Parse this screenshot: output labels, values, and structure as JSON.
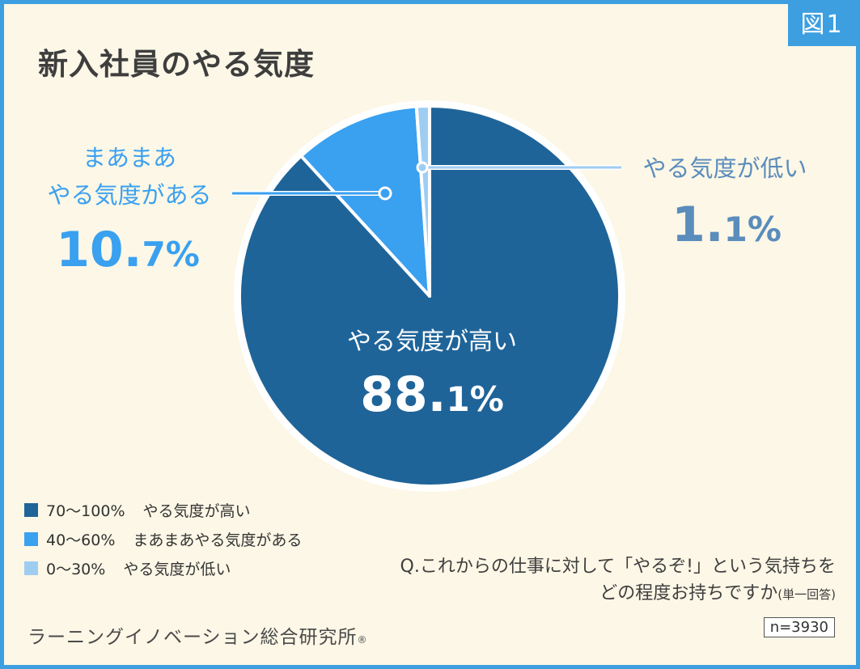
{
  "figure_label": "図1",
  "question": {
    "line1": "Q.これからの仕事に対して「やるぞ!」という気持ちを",
    "line2": "どの程度お持ちですか",
    "note": "(単一回答)"
  },
  "source": {
    "name": "ラーニングイノベーション総合研究所",
    "mark": "®"
  },
  "sample": "n=3930",
  "colors": {
    "frame": "#3d9fe0",
    "background": "#fcf7e6",
    "high": "#1f6499",
    "medium": "#3aa0f0",
    "low": "#9fcdf2"
  },
  "chart_data": {
    "type": "pie",
    "title": "新入社員のやる気度",
    "start": "12 o'clock, clockwise",
    "series": [
      {
        "legend_range": "70〜100%",
        "legend_label": "やる気度が高い",
        "label": "やる気度が高い",
        "value": 88.1,
        "value_main": "88.",
        "value_tail": "1%",
        "color": "#1f6499"
      },
      {
        "legend_range": "40〜60%",
        "legend_label": "まあまあやる気度がある",
        "label_line1": "まあまあ",
        "label_line2": "やる気度がある",
        "value": 10.7,
        "value_main": "10.",
        "value_tail": "7%",
        "color": "#3aa0f0"
      },
      {
        "legend_range": "0〜30%",
        "legend_label": "やる気度が低い",
        "label": "やる気度が低い",
        "value": 1.1,
        "value_main": "1.",
        "value_tail": "1%",
        "color": "#9fcdf2"
      }
    ]
  }
}
